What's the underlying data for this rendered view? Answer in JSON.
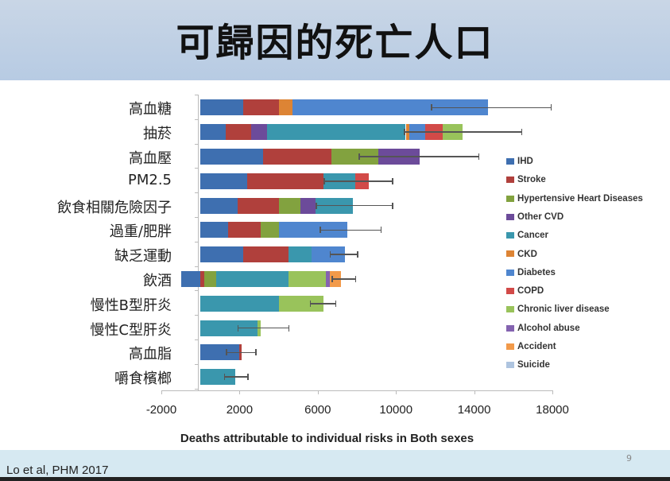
{
  "slide": {
    "title": "可歸因的死亡人口",
    "citation": "Lo et al, PHM 2017",
    "page_number": "9"
  },
  "colors": {
    "IHD": "#3e6fb0",
    "Stroke": "#b0403c",
    "Hypertensive Heart Diseases": "#82a23f",
    "Other CVD": "#6c4b9a",
    "Cancer": "#3a97ad",
    "CKD": "#dd8434",
    "Diabetes": "#4f86cf",
    "COPD": "#d24a48",
    "Chronic liver disease": "#99c35b",
    "Alcohol abuse": "#8463b0",
    "Accident": "#f29a4a",
    "Suicide": "#aec4df"
  },
  "chart_data": {
    "type": "bar",
    "orientation": "horizontal",
    "stacked": true,
    "title": "",
    "xlabel": "Deaths attributable to individual risks in Both sexes",
    "ylabel": "",
    "xlim": [
      -2000,
      18000
    ],
    "xticks": [
      "-2000",
      "2000",
      "6000",
      "10000",
      "14000",
      "18000"
    ],
    "grid": false,
    "legend_position": "right",
    "legend": [
      "IHD",
      "Stroke",
      "Hypertensive Heart Diseases",
      "Other CVD",
      "Cancer",
      "CKD",
      "Diabetes",
      "COPD",
      "Chronic liver disease",
      "Alcohol abuse",
      "Accident",
      "Suicide"
    ],
    "categories": [
      "高血糖",
      "抽菸",
      "高血壓",
      "PM2.5",
      "飲食相關危險因子",
      "過重/肥胖",
      "缺乏運動",
      "飲酒",
      "慢性B型肝炎",
      "慢性C型肝炎",
      "高血脂",
      "嚼食檳榔"
    ],
    "series": [
      {
        "name": "IHD",
        "values": [
          2200,
          1300,
          3200,
          2400,
          1900,
          1400,
          2200,
          -1000,
          0,
          0,
          2000,
          0
        ]
      },
      {
        "name": "Stroke",
        "values": [
          1800,
          1300,
          3500,
          3900,
          2100,
          1700,
          2300,
          200,
          0,
          0,
          100,
          0
        ]
      },
      {
        "name": "Hypertensive Heart Diseases",
        "values": [
          0,
          0,
          2400,
          0,
          1100,
          900,
          0,
          600,
          0,
          0,
          0,
          0
        ]
      },
      {
        "name": "Other CVD",
        "values": [
          0,
          800,
          2100,
          0,
          800,
          0,
          0,
          0,
          0,
          0,
          0,
          0
        ]
      },
      {
        "name": "Cancer",
        "values": [
          0,
          7100,
          0,
          1600,
          1900,
          0,
          1200,
          3700,
          4000,
          2900,
          0,
          1800
        ]
      },
      {
        "name": "CKD",
        "values": [
          700,
          200,
          0,
          0,
          0,
          0,
          0,
          0,
          0,
          0,
          0,
          0
        ]
      },
      {
        "name": "Diabetes",
        "values": [
          10000,
          800,
          0,
          0,
          0,
          3500,
          1700,
          0,
          0,
          0,
          0,
          0
        ]
      },
      {
        "name": "COPD",
        "values": [
          0,
          900,
          0,
          700,
          0,
          0,
          0,
          0,
          0,
          0,
          0,
          0
        ]
      },
      {
        "name": "Chronic liver disease",
        "values": [
          0,
          1000,
          0,
          0,
          0,
          0,
          0,
          1900,
          2300,
          200,
          0,
          0
        ]
      },
      {
        "name": "Alcohol abuse",
        "values": [
          0,
          0,
          0,
          0,
          0,
          0,
          0,
          200,
          0,
          0,
          0,
          0
        ]
      },
      {
        "name": "Accident",
        "values": [
          0,
          0,
          0,
          0,
          0,
          0,
          0,
          600,
          0,
          0,
          0,
          0
        ]
      },
      {
        "name": "Suicide",
        "values": [
          0,
          0,
          0,
          0,
          0,
          0,
          0,
          0,
          0,
          0,
          0,
          0
        ]
      }
    ],
    "error_bars": [
      {
        "low": 11800,
        "high": 17900
      },
      {
        "low": 10400,
        "high": 16400
      },
      {
        "low": 8100,
        "high": 14200
      },
      {
        "low": 6300,
        "high": 9800
      },
      {
        "low": 5900,
        "high": 9800
      },
      {
        "low": 6100,
        "high": 9200
      },
      {
        "low": 6600,
        "high": 8000
      },
      {
        "low": 6700,
        "high": 7900
      },
      {
        "low": 5600,
        "high": 6900
      },
      {
        "low": 1900,
        "high": 4500
      },
      {
        "low": 1300,
        "high": 2800
      },
      {
        "low": 1200,
        "high": 2400
      }
    ]
  }
}
